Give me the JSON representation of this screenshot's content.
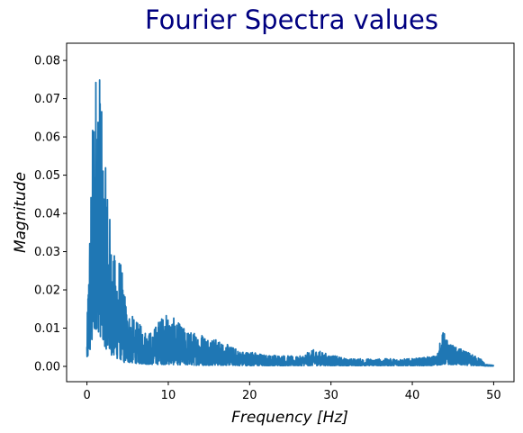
{
  "chart_data": {
    "type": "line",
    "title": "Fourier Spectra values",
    "title_color": "#000080",
    "xlabel": "Frequency [Hz]",
    "ylabel": "Magnitude",
    "line_color": "#1f77b4",
    "xlim": [
      -2.5,
      52.5
    ],
    "ylim": [
      -0.004,
      0.0845
    ],
    "xticks": [
      0,
      10,
      20,
      30,
      40,
      50
    ],
    "yticks": [
      0.0,
      0.01,
      0.02,
      0.03,
      0.04,
      0.05,
      0.06,
      0.07,
      0.08
    ],
    "xtick_labels": [
      "0",
      "10",
      "20",
      "30",
      "40",
      "50"
    ],
    "ytick_labels": [
      "0.00",
      "0.01",
      "0.02",
      "0.03",
      "0.04",
      "0.05",
      "0.06",
      "0.07",
      "0.08"
    ],
    "grid": false,
    "envelope": {
      "x": [
        0,
        0.3,
        0.6,
        0.9,
        1.2,
        1.6,
        2.0,
        2.5,
        3.0,
        3.5,
        4.0,
        4.5,
        5.0,
        6,
        7,
        8,
        9,
        10,
        11,
        12,
        13,
        14,
        15,
        16,
        17,
        18,
        19,
        20,
        22,
        24,
        26,
        28,
        30,
        32,
        34,
        36,
        38,
        40,
        42,
        43,
        43.8,
        44.5,
        45.5,
        46.5,
        47.5,
        48.5,
        49.0,
        50.0
      ],
      "max": [
        0.009,
        0.036,
        0.057,
        0.0805,
        0.0805,
        0.08,
        0.055,
        0.05,
        0.034,
        0.028,
        0.03,
        0.022,
        0.015,
        0.012,
        0.01,
        0.009,
        0.013,
        0.014,
        0.012,
        0.01,
        0.009,
        0.009,
        0.008,
        0.007,
        0.006,
        0.005,
        0.004,
        0.004,
        0.003,
        0.003,
        0.0025,
        0.0045,
        0.003,
        0.002,
        0.002,
        0.002,
        0.002,
        0.002,
        0.0025,
        0.003,
        0.0095,
        0.006,
        0.005,
        0.004,
        0.003,
        0.002,
        0.0005,
        0.0003
      ],
      "min": [
        0.001,
        0.003,
        0.004,
        0.008,
        0.01,
        0.008,
        0.006,
        0.004,
        0.003,
        0.002,
        0.002,
        0.001,
        0.001,
        0.0008,
        0.0006,
        0.0005,
        0.0005,
        0.0005,
        0.0004,
        0.0004,
        0.0003,
        0.0003,
        0.0003,
        0.0003,
        0.0003,
        0.0003,
        0.0002,
        0.0002,
        0.0002,
        0.0002,
        0.0002,
        0.0002,
        0.0002,
        0.0002,
        0.0002,
        0.0002,
        0.0002,
        0.0002,
        0.0002,
        0.0003,
        0.0005,
        0.0005,
        0.0004,
        0.0003,
        0.0002,
        0.0002,
        0.0001,
        0.0001
      ]
    }
  }
}
